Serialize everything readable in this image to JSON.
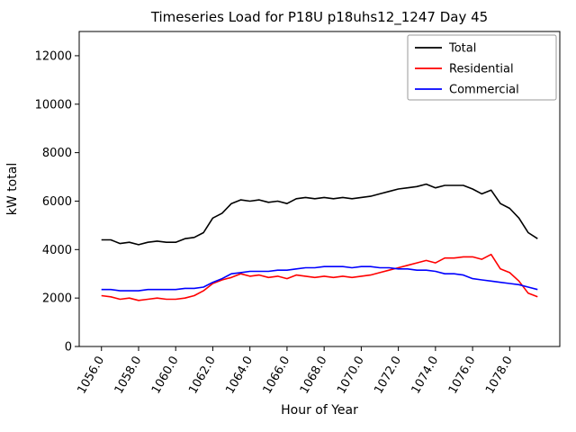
{
  "chart_data": {
    "type": "line",
    "title": "Timeseries Load for P18U p18uhs12_1247  Day 45",
    "xlabel": "Hour of Year",
    "ylabel": "kW total",
    "xlim": [
      1054.8,
      1080.7
    ],
    "ylim": [
      0,
      13000
    ],
    "grid": false,
    "legend_position": "upper right",
    "x_ticks": [
      1056,
      1058,
      1060,
      1062,
      1064,
      1066,
      1068,
      1070,
      1072,
      1074,
      1076,
      1078
    ],
    "x_tick_labels": [
      "1056.0",
      "1058.0",
      "1060.0",
      "1062.0",
      "1064.0",
      "1066.0",
      "1068.0",
      "1070.0",
      "1072.0",
      "1074.0",
      "1076.0",
      "1078.0"
    ],
    "y_ticks": [
      0,
      2000,
      4000,
      6000,
      8000,
      10000,
      12000
    ],
    "y_tick_labels": [
      "0",
      "2000",
      "4000",
      "6000",
      "8000",
      "10000",
      "12000"
    ],
    "x": [
      1056.0,
      1056.5,
      1057.0,
      1057.5,
      1058.0,
      1058.5,
      1059.0,
      1059.5,
      1060.0,
      1060.5,
      1061.0,
      1061.5,
      1062.0,
      1062.5,
      1063.0,
      1063.5,
      1064.0,
      1064.5,
      1065.0,
      1065.5,
      1066.0,
      1066.5,
      1067.0,
      1067.5,
      1068.0,
      1068.5,
      1069.0,
      1069.5,
      1070.0,
      1070.5,
      1071.0,
      1071.5,
      1072.0,
      1072.5,
      1073.0,
      1073.5,
      1074.0,
      1074.5,
      1075.0,
      1075.5,
      1076.0,
      1076.5,
      1077.0,
      1077.5,
      1078.0,
      1078.5,
      1079.0,
      1079.5
    ],
    "series": [
      {
        "name": "Total",
        "color": "#000000",
        "values": [
          4400,
          4400,
          4250,
          4300,
          4200,
          4300,
          4350,
          4300,
          4300,
          4450,
          4500,
          4700,
          5300,
          5500,
          5900,
          6050,
          6000,
          6050,
          5950,
          6000,
          5900,
          6100,
          6150,
          6100,
          6150,
          6100,
          6150,
          6100,
          6150,
          6200,
          6300,
          6400,
          6500,
          6550,
          6600,
          6700,
          6550,
          6650,
          6650,
          6650,
          6500,
          6300,
          6450,
          5900,
          5700,
          5300,
          4700,
          4450
        ]
      },
      {
        "name": "Residential",
        "color": "#ff0000",
        "values": [
          2100,
          2050,
          1950,
          2000,
          1900,
          1950,
          2000,
          1950,
          1950,
          2000,
          2100,
          2300,
          2600,
          2750,
          2850,
          3000,
          2900,
          2950,
          2850,
          2900,
          2800,
          2950,
          2900,
          2850,
          2900,
          2850,
          2900,
          2850,
          2900,
          2950,
          3050,
          3150,
          3250,
          3350,
          3450,
          3550,
          3450,
          3650,
          3650,
          3700,
          3700,
          3600,
          3800,
          3200,
          3050,
          2700,
          2200,
          2050
        ]
      },
      {
        "name": "Commercial",
        "color": "#0000ff",
        "values": [
          2350,
          2350,
          2300,
          2300,
          2300,
          2350,
          2350,
          2350,
          2350,
          2400,
          2400,
          2450,
          2650,
          2800,
          3000,
          3050,
          3100,
          3100,
          3100,
          3150,
          3150,
          3200,
          3250,
          3250,
          3300,
          3300,
          3300,
          3250,
          3300,
          3300,
          3250,
          3250,
          3200,
          3200,
          3150,
          3150,
          3100,
          3000,
          3000,
          2950,
          2800,
          2750,
          2700,
          2650,
          2600,
          2550,
          2450,
          2350
        ]
      }
    ]
  }
}
